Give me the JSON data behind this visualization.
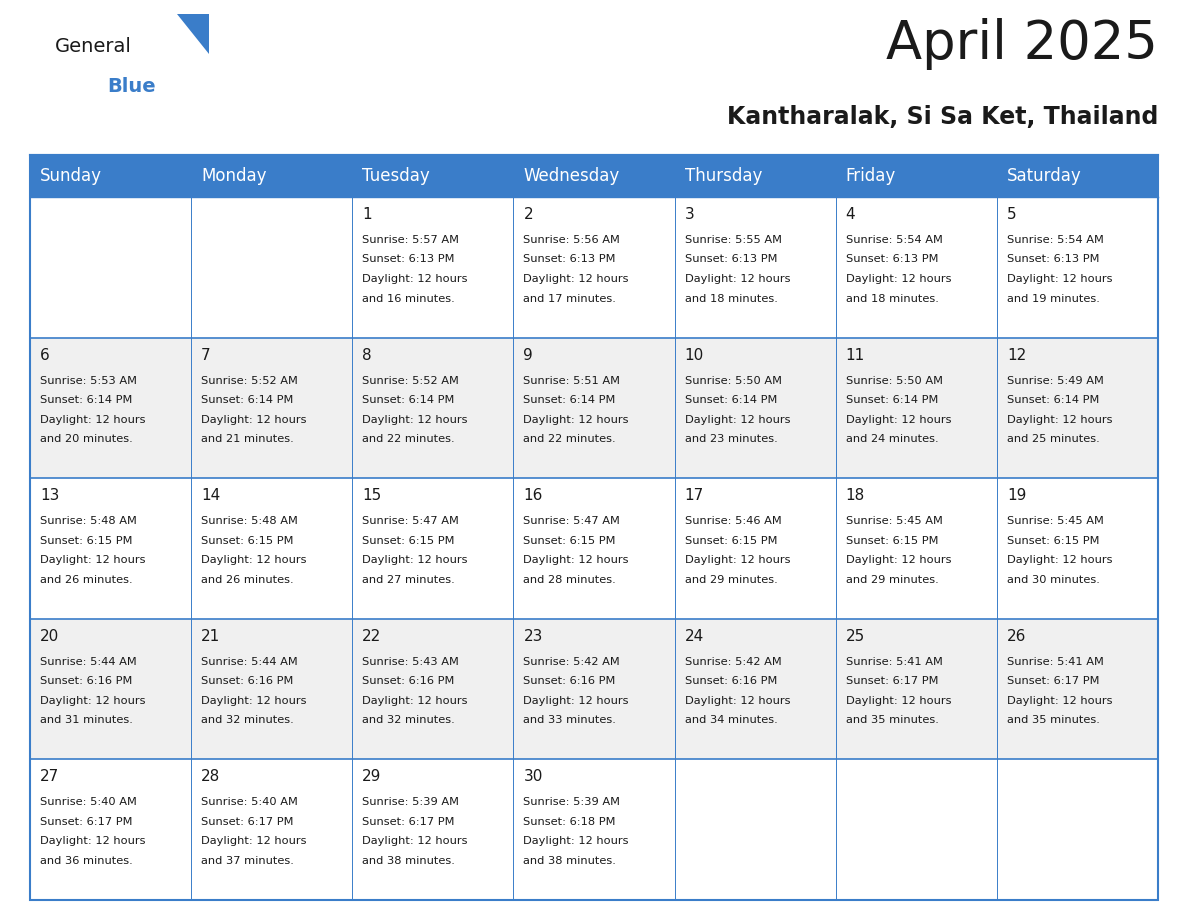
{
  "title": "April 2025",
  "subtitle": "Kantharalak, Si Sa Ket, Thailand",
  "header_color": "#3A7DC9",
  "header_text_color": "#FFFFFF",
  "cell_bg_white": "#FFFFFF",
  "cell_bg_gray": "#F0F0F0",
  "text_color": "#1a1a1a",
  "line_color": "#3A7DC9",
  "day_names": [
    "Sunday",
    "Monday",
    "Tuesday",
    "Wednesday",
    "Thursday",
    "Friday",
    "Saturday"
  ],
  "title_fontsize": 38,
  "subtitle_fontsize": 17,
  "header_fontsize": 12,
  "day_num_fontsize": 11,
  "cell_text_fontsize": 8.2,
  "logo_general_fontsize": 14,
  "logo_blue_fontsize": 14,
  "days": [
    {
      "day": 1,
      "col": 2,
      "row": 0,
      "sunrise": "5:57 AM",
      "sunset": "6:13 PM",
      "daylight_hours": 12,
      "daylight_minutes": 16
    },
    {
      "day": 2,
      "col": 3,
      "row": 0,
      "sunrise": "5:56 AM",
      "sunset": "6:13 PM",
      "daylight_hours": 12,
      "daylight_minutes": 17
    },
    {
      "day": 3,
      "col": 4,
      "row": 0,
      "sunrise": "5:55 AM",
      "sunset": "6:13 PM",
      "daylight_hours": 12,
      "daylight_minutes": 18
    },
    {
      "day": 4,
      "col": 5,
      "row": 0,
      "sunrise": "5:54 AM",
      "sunset": "6:13 PM",
      "daylight_hours": 12,
      "daylight_minutes": 18
    },
    {
      "day": 5,
      "col": 6,
      "row": 0,
      "sunrise": "5:54 AM",
      "sunset": "6:13 PM",
      "daylight_hours": 12,
      "daylight_minutes": 19
    },
    {
      "day": 6,
      "col": 0,
      "row": 1,
      "sunrise": "5:53 AM",
      "sunset": "6:14 PM",
      "daylight_hours": 12,
      "daylight_minutes": 20
    },
    {
      "day": 7,
      "col": 1,
      "row": 1,
      "sunrise": "5:52 AM",
      "sunset": "6:14 PM",
      "daylight_hours": 12,
      "daylight_minutes": 21
    },
    {
      "day": 8,
      "col": 2,
      "row": 1,
      "sunrise": "5:52 AM",
      "sunset": "6:14 PM",
      "daylight_hours": 12,
      "daylight_minutes": 22
    },
    {
      "day": 9,
      "col": 3,
      "row": 1,
      "sunrise": "5:51 AM",
      "sunset": "6:14 PM",
      "daylight_hours": 12,
      "daylight_minutes": 22
    },
    {
      "day": 10,
      "col": 4,
      "row": 1,
      "sunrise": "5:50 AM",
      "sunset": "6:14 PM",
      "daylight_hours": 12,
      "daylight_minutes": 23
    },
    {
      "day": 11,
      "col": 5,
      "row": 1,
      "sunrise": "5:50 AM",
      "sunset": "6:14 PM",
      "daylight_hours": 12,
      "daylight_minutes": 24
    },
    {
      "day": 12,
      "col": 6,
      "row": 1,
      "sunrise": "5:49 AM",
      "sunset": "6:14 PM",
      "daylight_hours": 12,
      "daylight_minutes": 25
    },
    {
      "day": 13,
      "col": 0,
      "row": 2,
      "sunrise": "5:48 AM",
      "sunset": "6:15 PM",
      "daylight_hours": 12,
      "daylight_minutes": 26
    },
    {
      "day": 14,
      "col": 1,
      "row": 2,
      "sunrise": "5:48 AM",
      "sunset": "6:15 PM",
      "daylight_hours": 12,
      "daylight_minutes": 26
    },
    {
      "day": 15,
      "col": 2,
      "row": 2,
      "sunrise": "5:47 AM",
      "sunset": "6:15 PM",
      "daylight_hours": 12,
      "daylight_minutes": 27
    },
    {
      "day": 16,
      "col": 3,
      "row": 2,
      "sunrise": "5:47 AM",
      "sunset": "6:15 PM",
      "daylight_hours": 12,
      "daylight_minutes": 28
    },
    {
      "day": 17,
      "col": 4,
      "row": 2,
      "sunrise": "5:46 AM",
      "sunset": "6:15 PM",
      "daylight_hours": 12,
      "daylight_minutes": 29
    },
    {
      "day": 18,
      "col": 5,
      "row": 2,
      "sunrise": "5:45 AM",
      "sunset": "6:15 PM",
      "daylight_hours": 12,
      "daylight_minutes": 29
    },
    {
      "day": 19,
      "col": 6,
      "row": 2,
      "sunrise": "5:45 AM",
      "sunset": "6:15 PM",
      "daylight_hours": 12,
      "daylight_minutes": 30
    },
    {
      "day": 20,
      "col": 0,
      "row": 3,
      "sunrise": "5:44 AM",
      "sunset": "6:16 PM",
      "daylight_hours": 12,
      "daylight_minutes": 31
    },
    {
      "day": 21,
      "col": 1,
      "row": 3,
      "sunrise": "5:44 AM",
      "sunset": "6:16 PM",
      "daylight_hours": 12,
      "daylight_minutes": 32
    },
    {
      "day": 22,
      "col": 2,
      "row": 3,
      "sunrise": "5:43 AM",
      "sunset": "6:16 PM",
      "daylight_hours": 12,
      "daylight_minutes": 32
    },
    {
      "day": 23,
      "col": 3,
      "row": 3,
      "sunrise": "5:42 AM",
      "sunset": "6:16 PM",
      "daylight_hours": 12,
      "daylight_minutes": 33
    },
    {
      "day": 24,
      "col": 4,
      "row": 3,
      "sunrise": "5:42 AM",
      "sunset": "6:16 PM",
      "daylight_hours": 12,
      "daylight_minutes": 34
    },
    {
      "day": 25,
      "col": 5,
      "row": 3,
      "sunrise": "5:41 AM",
      "sunset": "6:17 PM",
      "daylight_hours": 12,
      "daylight_minutes": 35
    },
    {
      "day": 26,
      "col": 6,
      "row": 3,
      "sunrise": "5:41 AM",
      "sunset": "6:17 PM",
      "daylight_hours": 12,
      "daylight_minutes": 35
    },
    {
      "day": 27,
      "col": 0,
      "row": 4,
      "sunrise": "5:40 AM",
      "sunset": "6:17 PM",
      "daylight_hours": 12,
      "daylight_minutes": 36
    },
    {
      "day": 28,
      "col": 1,
      "row": 4,
      "sunrise": "5:40 AM",
      "sunset": "6:17 PM",
      "daylight_hours": 12,
      "daylight_minutes": 37
    },
    {
      "day": 29,
      "col": 2,
      "row": 4,
      "sunrise": "5:39 AM",
      "sunset": "6:17 PM",
      "daylight_hours": 12,
      "daylight_minutes": 38
    },
    {
      "day": 30,
      "col": 3,
      "row": 4,
      "sunrise": "5:39 AM",
      "sunset": "6:18 PM",
      "daylight_hours": 12,
      "daylight_minutes": 38
    }
  ]
}
